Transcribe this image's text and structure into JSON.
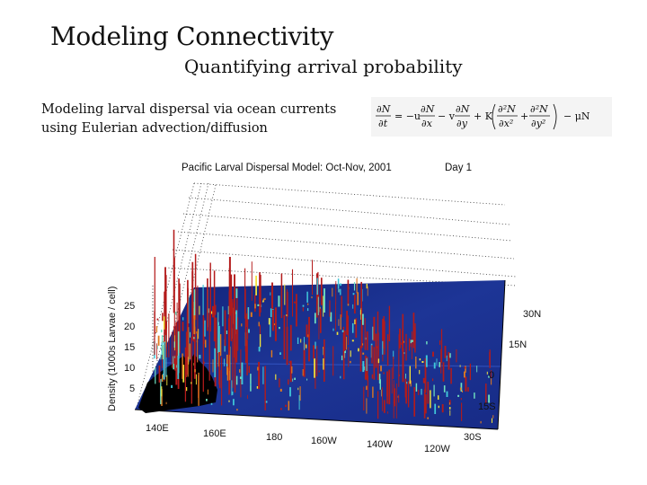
{
  "slide": {
    "title": "Modeling Connectivity",
    "subtitle": "Quantifying arrival probability",
    "body_line1": "Modeling larval dispersal via ocean currents",
    "body_line2": "using Eulerian advection/diffusion"
  },
  "equation": {
    "lhs": "∂N/∂t",
    "rhs": "= −u ∂N/∂x − v ∂N/∂y + K(∂²N/∂x² + ∂²N/∂y²) − μN"
  },
  "figure": {
    "title": "Pacific Larval Dispersal Model: Oct-Nov, 2001",
    "day_label": "Day 1",
    "zlabel": "Density (1000s Larvae / cell)",
    "z_ticks": [
      "25",
      "20",
      "15",
      "10",
      "5"
    ],
    "lon_ticks": [
      "140E",
      "160E",
      "180",
      "160W",
      "140W",
      "120W"
    ],
    "lat_ticks": [
      "30N",
      "15N",
      "0",
      "15S",
      "30S"
    ],
    "colors": {
      "ocean": "#1b2f8f",
      "ocean_dark": "#0f1e6e",
      "land": "#000000",
      "peak_high": "#b31b1b",
      "peak_mid": "#f2e23a",
      "peak_low": "#3fc7d9"
    }
  },
  "chart_data": {
    "type": "other",
    "title": "Pacific Larval Dispersal Model: Oct-Nov, 2001",
    "zlabel": "Density (1000s Larvae / cell)",
    "z_ticks": [
      5,
      10,
      15,
      20,
      25
    ],
    "x_ticks": [
      "140E",
      "160E",
      "180",
      "160W",
      "140W",
      "120W"
    ],
    "y_ticks": [
      "30N",
      "15N",
      "0",
      "15S",
      "30S"
    ]
  }
}
